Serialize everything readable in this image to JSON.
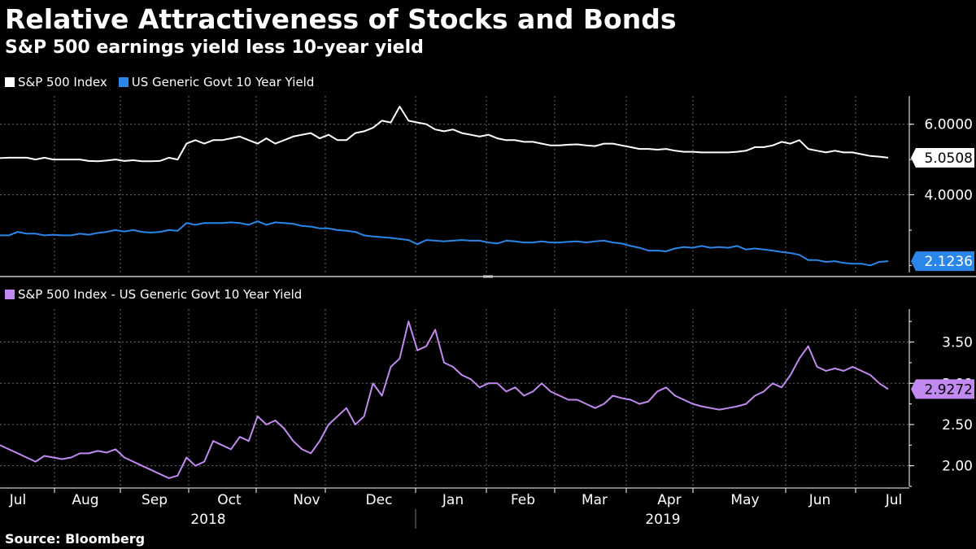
{
  "title": "Relative Attractiveness of Stocks and Bonds",
  "subtitle": "S&P 500 earnings yield less 10-year yield",
  "source": "Source: Bloomberg",
  "colors": {
    "sp500": "#ffffff",
    "govt10": "#2a86e8",
    "spread": "#c28af0",
    "grid": "#6a6a6a",
    "background": "#000000"
  },
  "chart_data": [
    {
      "type": "line",
      "title": "",
      "legend": [
        "S&P 500 Index",
        "US Generic Govt 10 Year Yield"
      ],
      "ylim": [
        1.8,
        6.8
      ],
      "yticks": [
        {
          "value": 4,
          "label": "4.0000"
        },
        {
          "value": 6,
          "label": "6.0000"
        }
      ],
      "series": [
        {
          "name": "S&P 500 Index",
          "color": "#ffffff",
          "last_label": "5.0508",
          "values": [
            5.04,
            5.05,
            5.05,
            5.05,
            5.0,
            5.05,
            5.0,
            5.0,
            5.0,
            5.0,
            4.96,
            4.95,
            4.97,
            5.0,
            4.96,
            4.98,
            4.95,
            4.95,
            4.96,
            5.05,
            5.0,
            5.45,
            5.55,
            5.45,
            5.55,
            5.55,
            5.6,
            5.65,
            5.55,
            5.45,
            5.6,
            5.45,
            5.55,
            5.65,
            5.7,
            5.75,
            5.6,
            5.7,
            5.55,
            5.55,
            5.75,
            5.8,
            5.9,
            6.1,
            6.05,
            6.5,
            6.1,
            6.05,
            6.0,
            5.85,
            5.8,
            5.85,
            5.75,
            5.7,
            5.65,
            5.7,
            5.6,
            5.55,
            5.55,
            5.5,
            5.5,
            5.45,
            5.4,
            5.4,
            5.42,
            5.43,
            5.4,
            5.38,
            5.45,
            5.45,
            5.4,
            5.35,
            5.3,
            5.3,
            5.28,
            5.3,
            5.25,
            5.22,
            5.22,
            5.2,
            5.2,
            5.2,
            5.2,
            5.22,
            5.25,
            5.35,
            5.35,
            5.4,
            5.5,
            5.45,
            5.55,
            5.3,
            5.25,
            5.2,
            5.25,
            5.2,
            5.2,
            5.15,
            5.1,
            5.08,
            5.05
          ]
        },
        {
          "name": "US Generic Govt 10 Year Yield",
          "color": "#2a86e8",
          "last_label": "2.1236",
          "values": [
            2.85,
            2.85,
            2.95,
            2.9,
            2.9,
            2.85,
            2.87,
            2.85,
            2.85,
            2.9,
            2.87,
            2.92,
            2.95,
            3.0,
            2.96,
            3.0,
            2.95,
            2.93,
            2.95,
            3.0,
            2.98,
            3.2,
            3.15,
            3.2,
            3.2,
            3.2,
            3.22,
            3.2,
            3.15,
            3.25,
            3.15,
            3.22,
            3.2,
            3.18,
            3.12,
            3.1,
            3.05,
            3.05,
            3.0,
            2.98,
            2.95,
            2.85,
            2.82,
            2.8,
            2.78,
            2.75,
            2.72,
            2.6,
            2.72,
            2.7,
            2.68,
            2.7,
            2.72,
            2.7,
            2.7,
            2.65,
            2.62,
            2.7,
            2.68,
            2.65,
            2.65,
            2.68,
            2.65,
            2.65,
            2.67,
            2.68,
            2.65,
            2.68,
            2.7,
            2.65,
            2.62,
            2.55,
            2.5,
            2.42,
            2.42,
            2.4,
            2.48,
            2.52,
            2.5,
            2.55,
            2.5,
            2.52,
            2.5,
            2.55,
            2.45,
            2.48,
            2.45,
            2.42,
            2.38,
            2.35,
            2.3,
            2.15,
            2.15,
            2.1,
            2.12,
            2.07,
            2.05,
            2.05,
            2.0,
            2.1,
            2.12
          ]
        }
      ]
    },
    {
      "type": "line",
      "title": "",
      "legend": [
        "S&P 500 Index - US Generic Govt 10 Year Yield"
      ],
      "ylim": [
        1.75,
        3.9
      ],
      "yticks": [
        {
          "value": 2.0,
          "label": "2.00"
        },
        {
          "value": 2.5,
          "label": "2.50"
        },
        {
          "value": 3.0,
          "label": "3.00"
        },
        {
          "value": 3.5,
          "label": "3.50"
        }
      ],
      "series": [
        {
          "name": "S&P 500 Index - US Generic Govt 10 Year Yield",
          "color": "#c28af0",
          "last_label": "2.9272",
          "values": [
            2.25,
            2.2,
            2.15,
            2.1,
            2.05,
            2.12,
            2.1,
            2.08,
            2.1,
            2.15,
            2.15,
            2.18,
            2.16,
            2.2,
            2.1,
            2.05,
            2.0,
            1.95,
            1.9,
            1.85,
            1.88,
            2.1,
            2.0,
            2.05,
            2.3,
            2.25,
            2.2,
            2.35,
            2.3,
            2.6,
            2.5,
            2.55,
            2.45,
            2.3,
            2.2,
            2.15,
            2.3,
            2.5,
            2.6,
            2.7,
            2.5,
            2.6,
            3.0,
            2.85,
            3.2,
            3.3,
            3.75,
            3.4,
            3.45,
            3.65,
            3.25,
            3.2,
            3.1,
            3.05,
            2.95,
            3.0,
            3.0,
            2.9,
            2.95,
            2.85,
            2.9,
            3.0,
            2.9,
            2.85,
            2.8,
            2.8,
            2.75,
            2.7,
            2.75,
            2.85,
            2.82,
            2.8,
            2.75,
            2.78,
            2.9,
            2.95,
            2.85,
            2.8,
            2.75,
            2.72,
            2.7,
            2.68,
            2.7,
            2.72,
            2.75,
            2.85,
            2.9,
            3.0,
            2.95,
            3.1,
            3.3,
            3.45,
            3.2,
            3.15,
            3.18,
            3.15,
            3.2,
            3.15,
            3.1,
            3.0,
            2.93
          ]
        }
      ]
    }
  ],
  "x_axis": {
    "months": [
      "Jul",
      "Aug",
      "Sep",
      "Oct",
      "Nov",
      "Dec",
      "Jan",
      "Feb",
      "Mar",
      "Apr",
      "May",
      "Jun",
      "Jul"
    ],
    "years": [
      "2018",
      "2019"
    ]
  }
}
